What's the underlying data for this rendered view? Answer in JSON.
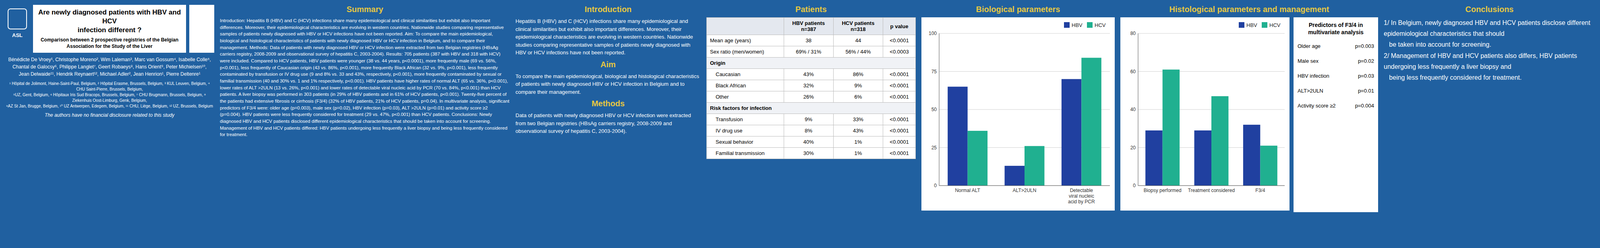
{
  "background_color": "#2060a0",
  "section_color": "#e8c840",
  "icon_label": "ASL",
  "title": "Are newly diagnosed patients with HBV and HCV\ninfection different ?",
  "subtitle": "Comparison between 2 prospective registries of the Belgian\nAssociation for the Study of the Liver",
  "authors": "Bénédicte De Vroey¹, Christophe Moreno², Wim Laleman³, Marc van Gossum⁴, Isabelle Colle⁵,\nChantal de Galocsy⁶, Philippe Langlet⁷, Geert Robaeys⁸, Hans Orient⁹, Peter Michielsen¹⁰,\nJean Delwaide¹¹, Hendrik Reynaert¹², Michael Adler², Jean Henrion¹, Pierre Deltenre¹",
  "affiliations": "¹ Hôpital de Jolimont, Haine-Saint-Paul, Belgium, ² Hôpital Erasme, Brussels, Belgium, ³ KUL Leuven, Belgium, ⁴ CHU Saint-Pierre, Brussels, Belgium,\n⁵UZ, Gent, Belgium, ⁶ Hôpitaux Iris Sud Bracops, Brussels, Belgium, ⁷ CHU Brugmann, Brussels, Belgium, ⁸ Ziekenhuis Oost-Limburg, Genk, Belgium,\n⁹AZ St Jan, Brugge, Belgium, ¹⁰ UZ Antwerpen, Edegem, Belgium, ¹¹ CHU, Liège, Belgium, ¹² UZ, Brussels, Belgium",
  "disclosure": "The authors have no financial disclosure related to this  study",
  "summary": {
    "title": "Summary",
    "text": "Introduction: Hepatitis B (HBV) and C (HCV) infections share many epidemiological and clinical similarities but exhibit also important differences. Moreover, their epidemiological characteristics are evolving in western countries. Nationwide studies comparing representative samples of patients newly diagnosed with HBV or HCV infections have not been reported. Aim: To compare the main epidemiological, biological and histological characteristics of patients with newly diagnosed HBV or HCV infection in Belgium, and to compare their management. Methods: Data of patients with newly diagnosed HBV or HCV infection were extracted from two Belgian registries (HBsAg carriers registry, 2008-2009 and observational survey of hepatitis C, 2003-2004). Results: 705 patients (387 with HBV and 318 with HCV) were included. Compared to HCV patients, HBV patients were younger (38 vs. 44 years, p<0.0001), more frequently male (69 vs. 56%, p<0.001), less frequently of Caucasian origin (43 vs. 86%, p<0.001), more frequently Black African (32 vs. 9%, p<0.001), less frequently contaminated by transfusion or IV drug use (9 and 8% vs. 33 and 43%, respectively, p<0.001), more frequently contaminated by sexual or familial transmission (40 and 30% vs. 1 and 1% respectively, p<0.001). HBV patients have higher rates of normal ALT (65 vs. 36%, p<0.001), lower rates of ALT >2ULN (13 vs. 26%, p<0.001) and lower rates of detectable viral nucleic acid by PCR (70 vs. 84%, p<0.001) than HCV patients. A liver biopsy was performed in 303 patients (in 29% of HBV patients and in 61% of HCV patients, p<0.001). Twenty-five percent of the patients had extensive fibrosis or cirrhosis (F3/4) (32% of HBV patients, 21% of HCV patients, p=0.04). In multivariate analysis, significant predictors of F3/4 were: older age (p=0.003), male sex (p=0.02), HBV infection (p=0.03), ALT >2ULN (p=0.01) and activity score ≥2 (p=0.004). HBV patients were less frequently considered for treatment (29 vs. 47%, p<0.001) than HCV patients. Conclusions: Newly diagnosed HBV and HCV patients disclosed different epidemiological characteristics that should be taken into account for screening. Management of HBV and HCV patients differed: HBV patients undergoing less frequently a liver biopsy and being less frequently considered for treatment."
  },
  "introduction": {
    "title": "Introduction",
    "text": "Hepatitis B (HBV) and C (HCV) infections share many epidemiological and clinical similarities but exhibit also important differences. Moreover, their epidemiological characteristics are evolving in western countries. Nationwide studies comparing representative samples of patients newly diagnosed with HBV or HCV infections have not been reported."
  },
  "aim": {
    "title": "Aim",
    "text": "To compare the main epidemiological, biological and histological characteristics of patients with newly diagnosed HBV or HCV infection in Belgium and to compare their management."
  },
  "methods": {
    "title": "Methods",
    "text": "Data of patients with newly diagnosed HBV or HCV infection were extracted from two Belgian registries (HBsAg carriers registry, 2008-2009 and observational survey of hepatitis C, 2003-2004)."
  },
  "patients": {
    "title": "Patients",
    "table": {
      "columns": [
        "HBV patients\nn=387",
        "HCV patients\nn=318",
        "p value"
      ],
      "rows": [
        {
          "label": "Mean age (years)",
          "cells": [
            "38",
            "44",
            "<0.0001"
          ]
        },
        {
          "label": "Sex ratio (men/women)",
          "cells": [
            "69% / 31%",
            "56% / 44%",
            "<0.0003"
          ]
        },
        {
          "label": "Origin",
          "rows": [
            {
              "label": "Caucasian",
              "cells": [
                "43%",
                "86%",
                "<0.0001"
              ]
            },
            {
              "label": "Black African",
              "cells": [
                "32%",
                "9%",
                "<0.0001"
              ]
            },
            {
              "label": "Other",
              "cells": [
                "26%",
                "6%",
                "<0.0001"
              ]
            }
          ]
        },
        {
          "label": "Risk factors for infection",
          "rows": [
            {
              "label": "Transfusion",
              "cells": [
                "9%",
                "33%",
                "<0.0001"
              ]
            },
            {
              "label": "IV drug use",
              "cells": [
                "8%",
                "43%",
                "<0.0001"
              ]
            },
            {
              "label": "Sexual behavior",
              "cells": [
                "40%",
                "1%",
                "<0.0001"
              ]
            },
            {
              "label": "Familial transmission",
              "cells": [
                "30%",
                "1%",
                "<0.0001"
              ]
            }
          ]
        }
      ]
    }
  },
  "chart_data": [
    {
      "type": "bar",
      "title": "Biological parameters",
      "categories": [
        "Normal ALT",
        "ALT>2ULN",
        "Detectable\nviral nucleic\nacid by PCR"
      ],
      "series": [
        {
          "name": "HBV",
          "color": "#2040a0",
          "values": [
            65,
            13,
            70
          ]
        },
        {
          "name": "HCV",
          "color": "#20b090",
          "values": [
            36,
            26,
            84
          ]
        }
      ],
      "ylim": [
        0,
        100
      ],
      "yticks": [
        0,
        25,
        50,
        75,
        100
      ],
      "grid": true,
      "legend": "upper right"
    },
    {
      "type": "bar",
      "title": "Histological parameters and management",
      "categories": [
        "Biopsy performed",
        "Treatment considered",
        "F3/4"
      ],
      "series": [
        {
          "name": "HBV",
          "color": "#2040a0",
          "values": [
            29,
            29,
            32
          ]
        },
        {
          "name": "HCV",
          "color": "#20b090",
          "values": [
            61,
            47,
            21
          ]
        }
      ],
      "ylim": [
        0,
        80
      ],
      "yticks": [
        0,
        20,
        40,
        60,
        80
      ],
      "grid": true,
      "legend": "upper right"
    }
  ],
  "predictors": {
    "title": "Predictors of F3/4 in\nmultivariate analysis",
    "rows": [
      [
        "Older age",
        "p=0.003"
      ],
      [
        "Male sex",
        "p=0.02"
      ],
      [
        "HBV infection",
        "p=0.03"
      ],
      [
        "ALT>2ULN",
        "p=0.01"
      ],
      [
        "Activity score ≥2",
        "p=0.004"
      ]
    ]
  },
  "conclusions": {
    "title": "Conclusions",
    "text": "1/ In Belgium, newly diagnosed HBV and HCV patients disclose different epidemiological characteristics that should\n   be taken into account for screening.\n2/ Management of HBV and HCV patients also differs, HBV patients undergoing less frequently a liver biopsy and\n   being less frequently considered for treatment."
  }
}
